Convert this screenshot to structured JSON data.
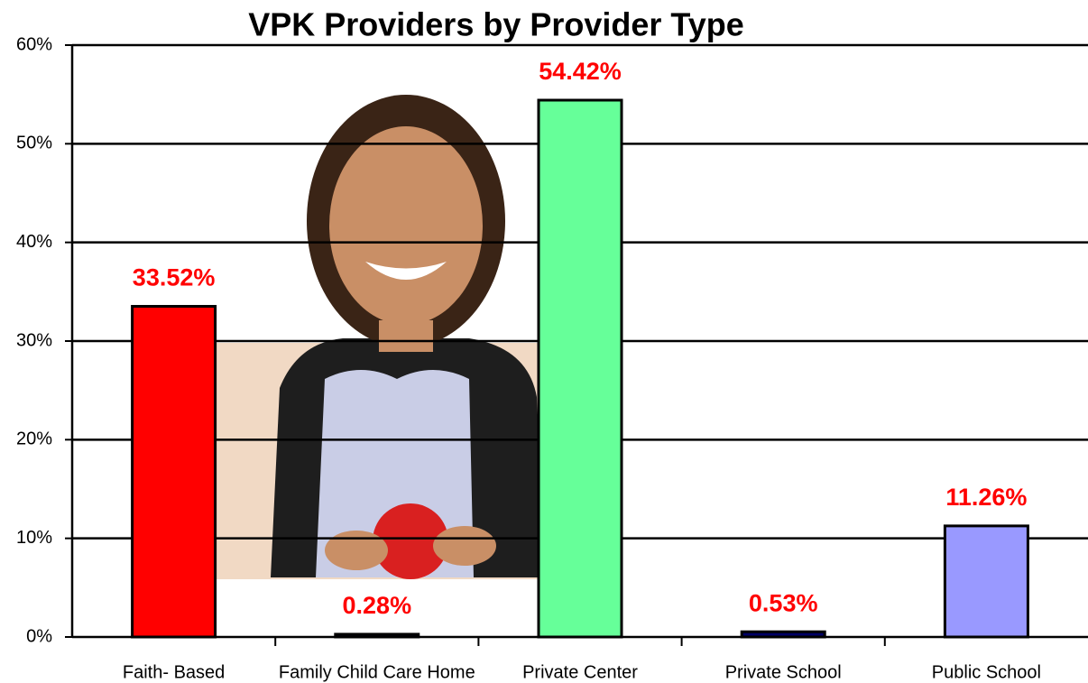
{
  "chart_data": {
    "type": "bar",
    "title": "VPK Providers by Provider Type",
    "categories": [
      "Faith- Based",
      "Family Child Care Home",
      "Private Center",
      "Private School",
      "Public School"
    ],
    "values": [
      33.52,
      0.28,
      54.42,
      0.53,
      11.26
    ],
    "value_labels": [
      "33.52%",
      "0.28%",
      "54.42%",
      "0.53%",
      "11.26%"
    ],
    "colors": [
      "#ff0000",
      "#000066",
      "#66ff99",
      "#000066",
      "#9999ff"
    ],
    "ylim": [
      0,
      60
    ],
    "yticks": [
      {
        "value": 0,
        "label": "0%"
      },
      {
        "value": 10,
        "label": "10%"
      },
      {
        "value": 20,
        "label": "20%"
      },
      {
        "value": 30,
        "label": "30%"
      },
      {
        "value": 40,
        "label": "40%"
      },
      {
        "value": 50,
        "label": "50%"
      },
      {
        "value": 60,
        "label": "60%"
      }
    ],
    "grid": true
  }
}
